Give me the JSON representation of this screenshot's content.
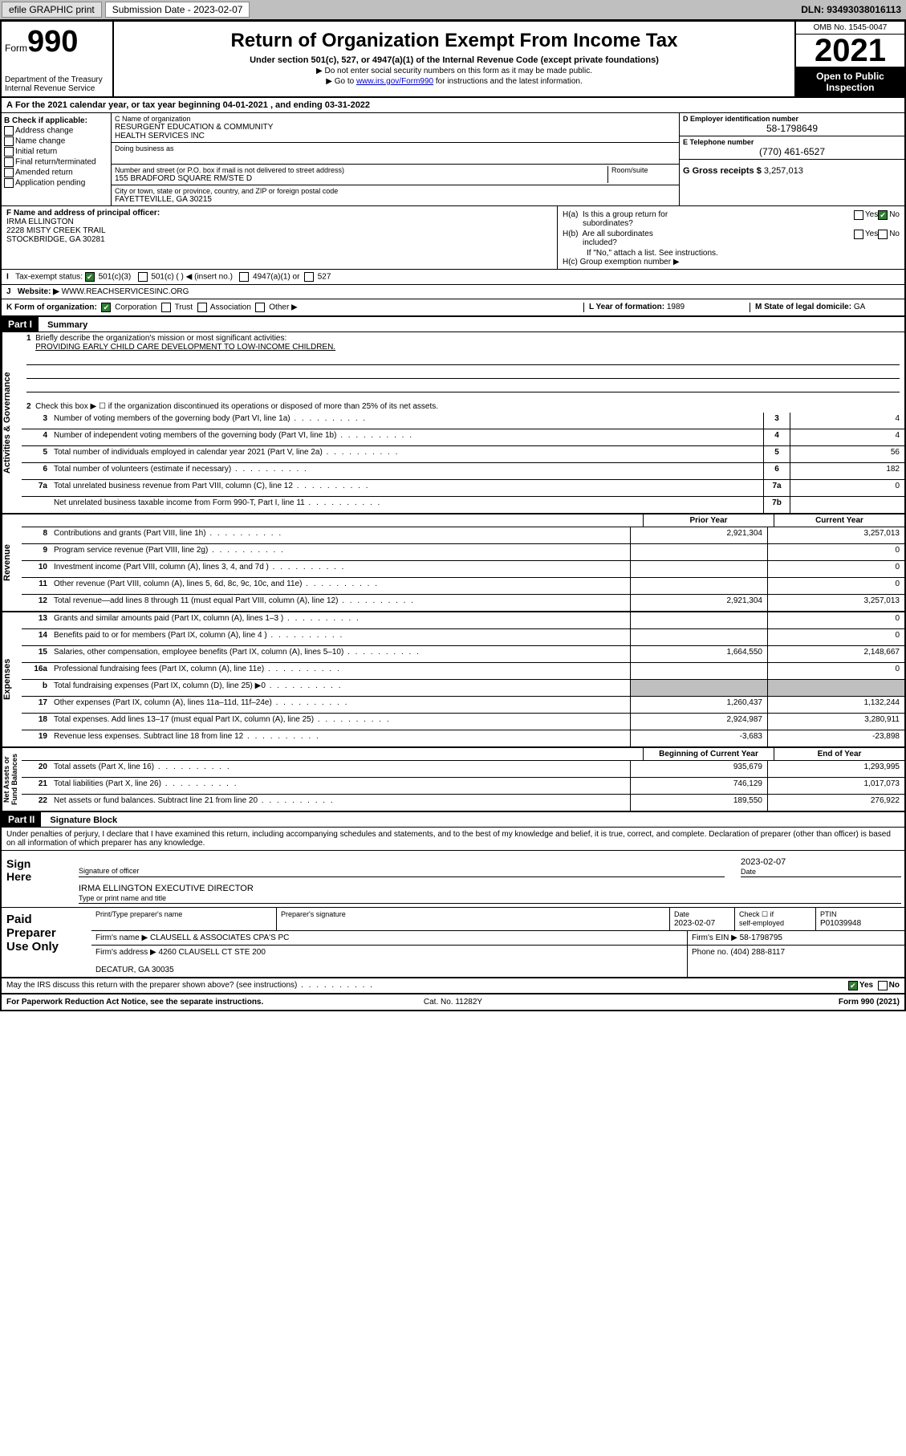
{
  "toolbar": {
    "efile": "efile GRAPHIC print",
    "sub_label": "Submission Date - 2023-02-07",
    "dln": "DLN: 93493038016113"
  },
  "header": {
    "form_prefix": "Form",
    "form_num": "990",
    "dept": "Department of the Treasury\nInternal Revenue Service",
    "title": "Return of Organization Exempt From Income Tax",
    "subtitle": "Under section 501(c), 527, or 4947(a)(1) of the Internal Revenue Code (except private foundations)",
    "note1": "▶ Do not enter social security numbers on this form as it may be made public.",
    "note2_pre": "▶ Go to ",
    "note2_link": "www.irs.gov/Form990",
    "note2_post": " for instructions and the latest information.",
    "omb": "OMB No. 1545-0047",
    "year": "2021",
    "open": "Open to Public\nInspection"
  },
  "periodA": "For the 2021 calendar year, or tax year beginning 04-01-2021  , and ending 03-31-2022",
  "boxB": {
    "hdr": "B Check if applicable:",
    "items": [
      "Address change",
      "Name change",
      "Initial return",
      "Final return/terminated",
      "Amended return",
      "Application pending"
    ]
  },
  "boxC": {
    "name_lbl": "C Name of organization",
    "name": "RESURGENT EDUCATION & COMMUNITY\nHEALTH SERVICES INC",
    "dba_lbl": "Doing business as",
    "street_lbl": "Number and street (or P.O. box if mail is not delivered to street address)",
    "room_lbl": "Room/suite",
    "street": "155 BRADFORD SQUARE RM/STE D",
    "city_lbl": "City or town, state or province, country, and ZIP or foreign postal code",
    "city": "FAYETTEVILLE, GA  30215"
  },
  "boxD": {
    "lbl": "D Employer identification number",
    "val": "58-1798649"
  },
  "boxE": {
    "lbl": "E Telephone number",
    "val": "(770) 461-6527"
  },
  "boxG": {
    "lbl": "G Gross receipts $",
    "val": "3,257,013"
  },
  "boxF": {
    "lbl": "F Name and address of principal officer:",
    "name": "IRMA ELLINGTON",
    "addr1": "2228 MISTY CREEK TRAIL",
    "addr2": "STOCKBRIDGE, GA  30281"
  },
  "boxH": {
    "a": "H(a)  Is this a group return for\n         subordinates?",
    "a_yes": "Yes",
    "a_no": "No",
    "b": "H(b)  Are all subordinates\n         included?",
    "b_yes": "Yes",
    "b_no": "No",
    "b_note": "If \"No,\" attach a list. See instructions.",
    "c": "H(c)  Group exemption number ▶"
  },
  "boxI": {
    "lbl": "Tax-exempt status:",
    "c3": "501(c)(3)",
    "c": "501(c) (  ) ◀ (insert no.)",
    "a1": "4947(a)(1) or",
    "s527": "527"
  },
  "boxJ": {
    "lbl": "Website: ▶",
    "val": "WWW.REACHSERVICESINC.ORG"
  },
  "boxK": {
    "lbl": "K Form of organization:",
    "corp": "Corporation",
    "trust": "Trust",
    "assoc": "Association",
    "other": "Other ▶"
  },
  "boxL": {
    "lbl": "L Year of formation:",
    "val": "1989"
  },
  "boxM": {
    "lbl": "M State of legal domicile:",
    "val": "GA"
  },
  "part1": {
    "label": "Part I",
    "title": "Summary"
  },
  "summary": {
    "side1": "Activities & Governance",
    "side2": "Revenue",
    "side3": "Expenses",
    "side4": "Net Assets or\nFund Balances",
    "l1": "Briefly describe the organization's mission or most significant activities:",
    "mission": "PROVIDING EARLY CHILD CARE DEVELOPMENT TO LOW-INCOME CHILDREN.",
    "l2": "Check this box ▶ ☐  if the organization discontinued its operations or disposed of more than 25% of its net assets.",
    "lines": [
      {
        "n": "3",
        "t": "Number of voting members of the governing body (Part VI, line 1a)",
        "b": "3",
        "v": "4"
      },
      {
        "n": "4",
        "t": "Number of independent voting members of the governing body (Part VI, line 1b)",
        "b": "4",
        "v": "4"
      },
      {
        "n": "5",
        "t": "Total number of individuals employed in calendar year 2021 (Part V, line 2a)",
        "b": "5",
        "v": "56"
      },
      {
        "n": "6",
        "t": "Total number of volunteers (estimate if necessary)",
        "b": "6",
        "v": "182"
      },
      {
        "n": "7a",
        "t": "Total unrelated business revenue from Part VIII, column (C), line 12",
        "b": "7a",
        "v": "0"
      },
      {
        "n": "",
        "t": "Net unrelated business taxable income from Form 990-T, Part I, line 11",
        "b": "7b",
        "v": ""
      }
    ],
    "col_prior": "Prior Year",
    "col_curr": "Current Year",
    "rev": [
      {
        "n": "8",
        "t": "Contributions and grants (Part VIII, line 1h)",
        "p": "2,921,304",
        "c": "3,257,013"
      },
      {
        "n": "9",
        "t": "Program service revenue (Part VIII, line 2g)",
        "p": "",
        "c": "0"
      },
      {
        "n": "10",
        "t": "Investment income (Part VIII, column (A), lines 3, 4, and 7d )",
        "p": "",
        "c": "0"
      },
      {
        "n": "11",
        "t": "Other revenue (Part VIII, column (A), lines 5, 6d, 8c, 9c, 10c, and 11e)",
        "p": "",
        "c": "0"
      },
      {
        "n": "12",
        "t": "Total revenue—add lines 8 through 11 (must equal Part VIII, column (A), line 12)",
        "p": "2,921,304",
        "c": "3,257,013"
      }
    ],
    "exp": [
      {
        "n": "13",
        "t": "Grants and similar amounts paid (Part IX, column (A), lines 1–3 )",
        "p": "",
        "c": "0"
      },
      {
        "n": "14",
        "t": "Benefits paid to or for members (Part IX, column (A), line 4 )",
        "p": "",
        "c": "0"
      },
      {
        "n": "15",
        "t": "Salaries, other compensation, employee benefits (Part IX, column (A), lines 5–10)",
        "p": "1,664,550",
        "c": "2,148,667"
      },
      {
        "n": "16a",
        "t": "Professional fundraising fees (Part IX, column (A), line 11e)",
        "p": "",
        "c": "0"
      },
      {
        "n": "b",
        "t": "Total fundraising expenses (Part IX, column (D), line 25) ▶0",
        "p": "shade",
        "c": "shade"
      },
      {
        "n": "17",
        "t": "Other expenses (Part IX, column (A), lines 11a–11d, 11f–24e)",
        "p": "1,260,437",
        "c": "1,132,244"
      },
      {
        "n": "18",
        "t": "Total expenses. Add lines 13–17 (must equal Part IX, column (A), line 25)",
        "p": "2,924,987",
        "c": "3,280,911"
      },
      {
        "n": "19",
        "t": "Revenue less expenses. Subtract line 18 from line 12",
        "p": "-3,683",
        "c": "-23,898"
      }
    ],
    "col_beg": "Beginning of Current Year",
    "col_end": "End of Year",
    "net": [
      {
        "n": "20",
        "t": "Total assets (Part X, line 16)",
        "p": "935,679",
        "c": "1,293,995"
      },
      {
        "n": "21",
        "t": "Total liabilities (Part X, line 26)",
        "p": "746,129",
        "c": "1,017,073"
      },
      {
        "n": "22",
        "t": "Net assets or fund balances. Subtract line 21 from line 20",
        "p": "189,550",
        "c": "276,922"
      }
    ]
  },
  "part2": {
    "label": "Part II",
    "title": "Signature Block"
  },
  "penalty": "Under penalties of perjury, I declare that I have examined this return, including accompanying schedules and statements, and to the best of my knowledge and belief, it is true, correct, and complete. Declaration of preparer (other than officer) is based on all information of which preparer has any knowledge.",
  "sign": {
    "here": "Sign\nHere",
    "sig_lbl": "Signature of officer",
    "date_lbl": "Date",
    "date": "2023-02-07",
    "name": "IRMA ELLINGTON  EXECUTIVE DIRECTOR",
    "name_lbl": "Type or print name and title"
  },
  "paid": {
    "lbl": "Paid\nPreparer\nUse Only",
    "h1": "Print/Type preparer's name",
    "h2": "Preparer's signature",
    "h3": "Date",
    "h3v": "2023-02-07",
    "h4": "Check ☐ if\nself-employed",
    "h5": "PTIN",
    "h5v": "P01039948",
    "firm_lbl": "Firm's name    ▶",
    "firm": "CLAUSELL & ASSOCIATES CPA'S PC",
    "ein_lbl": "Firm's EIN ▶",
    "ein": "58-1798795",
    "addr_lbl": "Firm's address ▶",
    "addr": "4260 CLAUSELL CT STE 200\n\nDECATUR, GA  30035",
    "phone_lbl": "Phone no.",
    "phone": "(404) 288-8117"
  },
  "irs_discuss": "May the IRS discuss this return with the preparer shown above? (see instructions)",
  "footer": {
    "l": "For Paperwork Reduction Act Notice, see the separate instructions.",
    "c": "Cat. No. 11282Y",
    "r": "Form 990 (2021)"
  },
  "colors": {
    "header_btn": "#bfbfbf",
    "link": "#0000cc",
    "check": "#2e7d32"
  }
}
